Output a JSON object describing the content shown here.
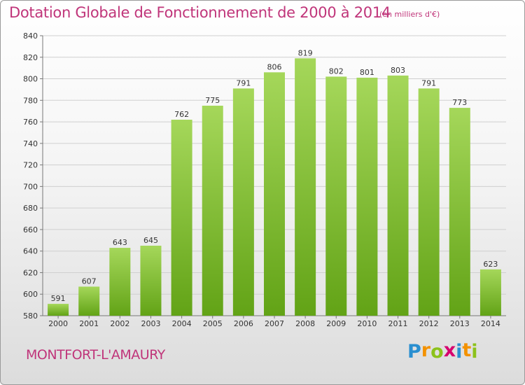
{
  "header": {
    "title": "Dotation Globale de Fonctionnement de 2000 à 2014",
    "unit": "(en milliers d'€)"
  },
  "footer": {
    "city": "MONTFORT-L'AMAURY",
    "logo": {
      "letters": [
        "P",
        "r",
        "o",
        "x",
        "i",
        "t",
        "i"
      ],
      "colors": [
        "#2a8fd0",
        "#f39200",
        "#8cc21b",
        "#d6006e",
        "#2a8fd0",
        "#f39200",
        "#8cc21b"
      ]
    }
  },
  "colors": {
    "title": "#c0357a",
    "bar_top": "#a5d75a",
    "bar_bottom": "#62a316"
  },
  "chart_data": {
    "type": "bar",
    "categories": [
      "2000",
      "2001",
      "2002",
      "2003",
      "2004",
      "2005",
      "2006",
      "2007",
      "2008",
      "2009",
      "2010",
      "2011",
      "2012",
      "2013",
      "2014"
    ],
    "values": [
      591,
      607,
      643,
      645,
      762,
      775,
      791,
      806,
      819,
      802,
      801,
      803,
      791,
      773,
      623
    ],
    "ylim": [
      580,
      840
    ],
    "yticks": [
      580,
      600,
      620,
      640,
      660,
      680,
      700,
      720,
      740,
      760,
      780,
      800,
      820,
      840
    ],
    "grid": true
  }
}
